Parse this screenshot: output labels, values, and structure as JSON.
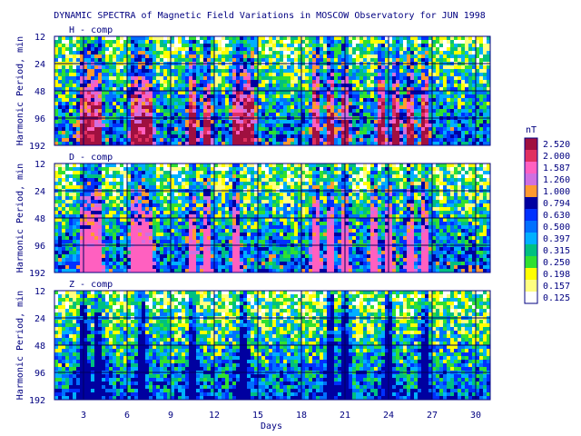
{
  "chart_data": {
    "type": "heatmap",
    "title": "DYNAMIC SPECTRA of Magnetic Field Variations in MOSCOW Observatory for JUN 1998",
    "xlabel": "Days",
    "x_ticks": [
      "3",
      "6",
      "9",
      "12",
      "15",
      "18",
      "21",
      "24",
      "27",
      "30"
    ],
    "x_tick_values": [
      3,
      6,
      9,
      12,
      15,
      18,
      21,
      24,
      27,
      30
    ],
    "xlim": [
      1,
      31
    ],
    "ylabel": "Harmonic Period, min",
    "y_ticks": [
      "12",
      "24",
      "48",
      "96",
      "192"
    ],
    "y_tick_values": [
      12,
      24,
      48,
      96,
      192
    ],
    "y_scale": "log2",
    "grid": true,
    "colorbar": {
      "unit": "nT",
      "levels": [
        "2.520",
        "2.000",
        "1.587",
        "1.260",
        "1.000",
        "0.794",
        "0.630",
        "0.500",
        "0.397",
        "0.315",
        "0.250",
        "0.198",
        "0.157",
        "0.125"
      ],
      "colors": [
        "#a01040",
        "#e03060",
        "#ff60c0",
        "#d070e0",
        "#ff9a30",
        "#0000a0",
        "#0030ff",
        "#0070ff",
        "#00b0ff",
        "#00c080",
        "#30e030",
        "#ffff00",
        "#ffff80",
        "#ffffff"
      ]
    },
    "panels": [
      {
        "label": "H - comp",
        "active_days": [
          3,
          3.5,
          4,
          6.5,
          7,
          7.5,
          10.5,
          11.5,
          13.5,
          14,
          14.5,
          19,
          20,
          21,
          23.5,
          24.5,
          25.5,
          26.5
        ],
        "max_level_index": 0
      },
      {
        "label": "D - comp",
        "active_days": [
          3,
          3.5,
          4,
          6.5,
          7,
          7.5,
          10.5,
          11.5,
          13.5,
          19,
          20,
          21,
          23,
          24,
          25.5,
          26.5
        ],
        "max_level_index": 2
      },
      {
        "label": "Z - comp",
        "active_days": [
          3,
          4,
          7,
          10.5,
          14,
          20,
          21,
          24,
          26.5
        ],
        "max_level_index": 5
      }
    ]
  }
}
